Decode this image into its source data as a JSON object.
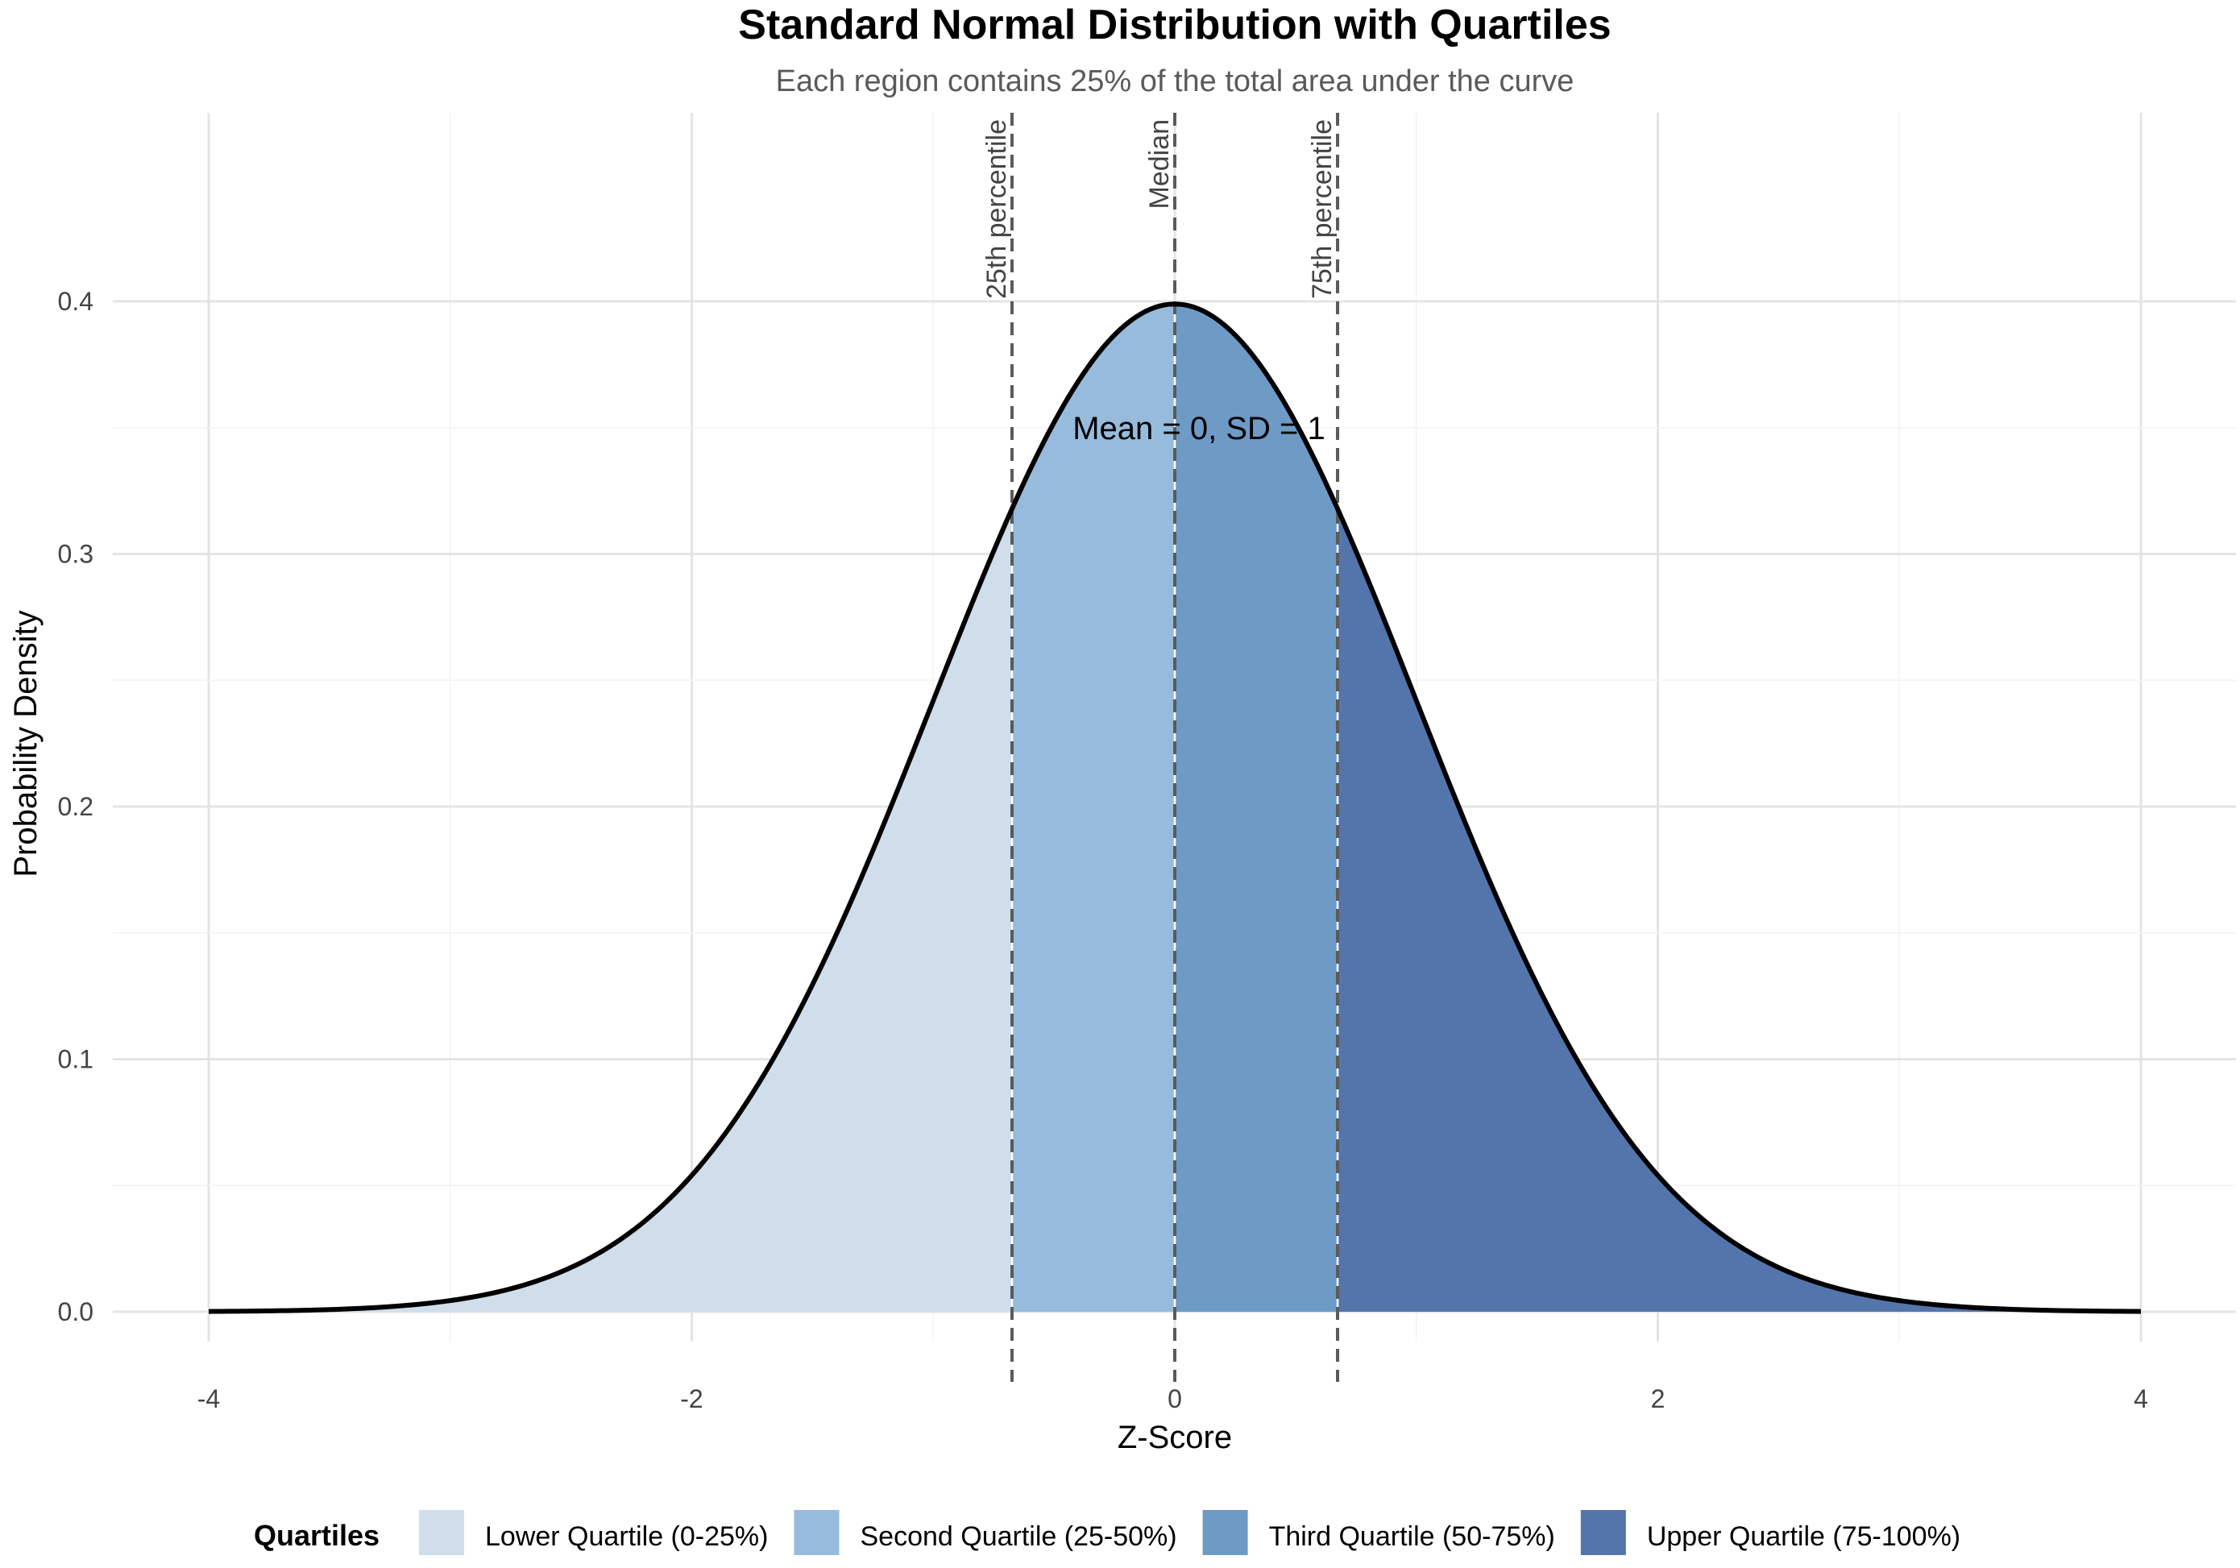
{
  "chart_data": {
    "type": "area",
    "title": "Standard Normal Distribution with Quartiles",
    "subtitle": "Each region contains 25% of the total area under the curve",
    "xlabel": "Z-Score",
    "ylabel": "Probability Density",
    "xlim": [
      -4,
      4
    ],
    "ylim": [
      0,
      0.4
    ],
    "x_ticks": [
      -4,
      -2,
      0,
      2,
      4
    ],
    "x_tick_labels": [
      "-4",
      "-2",
      "0",
      "2",
      "4"
    ],
    "y_ticks": [
      0.0,
      0.1,
      0.2,
      0.3,
      0.4
    ],
    "y_tick_labels": [
      "0.0",
      "0.1",
      "0.2",
      "0.3",
      "0.4"
    ],
    "grid": true,
    "distribution": {
      "name": "normal",
      "mean": 0,
      "sd": 1
    },
    "curve_color": "#000000",
    "regions": [
      {
        "name": "Lower Quartile (0-25%)",
        "from": -4,
        "to": -0.674,
        "color": "#cfdeea"
      },
      {
        "name": "Second Quartile (25-50%)",
        "from": -0.674,
        "to": 0,
        "color": "#97bbdc"
      },
      {
        "name": "Third Quartile (50-75%)",
        "from": 0,
        "to": 0.674,
        "color": "#6e9ac6"
      },
      {
        "name": "Upper Quartile (75-100%)",
        "from": 0.674,
        "to": 4,
        "color": "#5475ab"
      }
    ],
    "vlines": [
      {
        "x": -0.674,
        "label": "25th percentile"
      },
      {
        "x": 0,
        "label": "Median"
      },
      {
        "x": 0.674,
        "label": "75th percentile"
      }
    ],
    "annotation": {
      "text": "Mean = 0, SD = 1",
      "x": 0,
      "y": 0.35
    },
    "legend": {
      "title": "Quartiles",
      "position": "bottom"
    }
  }
}
